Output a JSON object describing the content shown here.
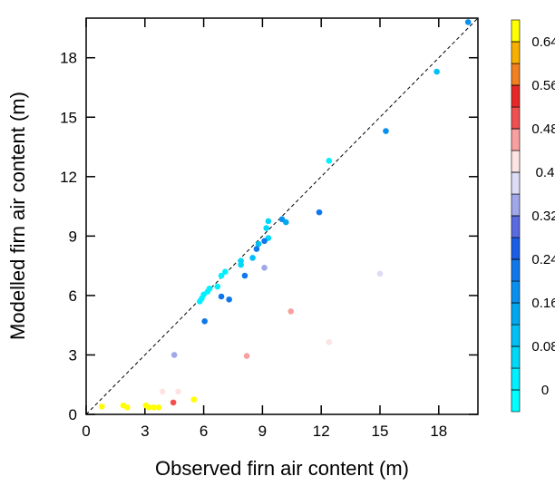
{
  "chart_data": {
    "type": "scatter",
    "x_label": "Observed firn air content (m)",
    "y_label": "Modelled firn air content (m)",
    "xlim": [
      0,
      20
    ],
    "ylim": [
      0,
      20
    ],
    "xticks": [
      0,
      3,
      6,
      9,
      12,
      15,
      18
    ],
    "yticks": [
      0,
      3,
      6,
      9,
      12,
      15,
      18
    ],
    "identity_line": true,
    "series": [
      {
        "x": [
          19.5,
          17.9,
          15.3,
          12.4,
          11.9,
          10.0,
          10.2,
          9.3,
          9.2,
          9.3,
          9.1,
          8.8,
          8.7,
          8.5,
          7.9,
          7.9,
          8.1,
          9.1,
          7.1,
          6.9,
          6.7,
          6.3,
          6.2,
          6.0,
          5.9,
          5.8,
          6.9,
          7.3,
          6.05,
          4.5,
          10.45,
          12.4,
          8.2,
          15.0,
          0.8,
          1.9,
          2.1,
          3.05,
          3.2,
          3.45,
          3.7,
          3.9,
          4.7,
          4.45,
          5.5
        ],
        "values": [
          19.8,
          17.3,
          14.3,
          12.8,
          10.2,
          9.85,
          9.7,
          9.75,
          9.4,
          8.9,
          8.75,
          8.6,
          8.35,
          7.9,
          7.75,
          7.55,
          7.0,
          7.4,
          7.2,
          7.0,
          6.45,
          6.35,
          6.2,
          6.05,
          5.85,
          5.7,
          5.95,
          5.8,
          4.7,
          3.0,
          5.2,
          3.65,
          2.95,
          7.1,
          0.4,
          0.45,
          0.35,
          0.45,
          0.35,
          0.35,
          0.35,
          1.15,
          1.15,
          0.6,
          0.75
        ],
        "color_values": [
          0.18,
          0.1,
          0.18,
          0.02,
          0.22,
          0.17,
          0.15,
          0.04,
          0.04,
          0.06,
          0.22,
          0.1,
          0.2,
          0.1,
          0.06,
          0.04,
          0.22,
          0.33,
          0.02,
          0.02,
          0.02,
          0.02,
          0.02,
          0.02,
          0.02,
          0.02,
          0.22,
          0.22,
          0.22,
          0.33,
          0.45,
          0.42,
          0.45,
          0.38,
          0.66,
          0.66,
          0.66,
          0.66,
          0.66,
          0.66,
          0.66,
          0.41,
          0.41,
          0.5,
          0.66
        ]
      }
    ],
    "colorbar": {
      "ticks": [
        0,
        0.08,
        0.16,
        0.24,
        0.32,
        0.4,
        0.48,
        0.56,
        0.64
      ],
      "colors": [
        "#00ffff",
        "#00f0ff",
        "#00d8f8",
        "#00c0f5",
        "#00a8f0",
        "#0890f0",
        "#1078ec",
        "#1a5ee8",
        "#5a6ae0",
        "#a0a8ea",
        "#dcdcf6",
        "#fce4e4",
        "#f8a0a0",
        "#f05050",
        "#e82828",
        "#f08020",
        "#f8b000",
        "#ffff00"
      ]
    }
  }
}
